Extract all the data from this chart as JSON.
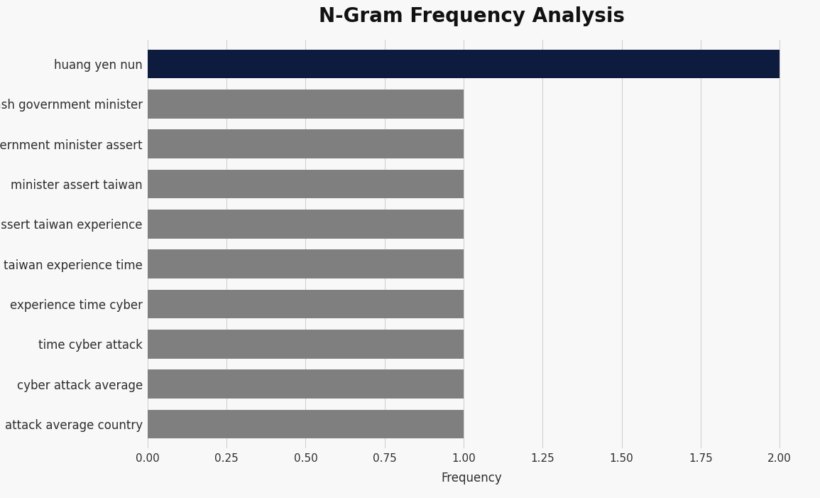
{
  "title": "N-Gram Frequency Analysis",
  "xlabel": "Frequency",
  "categories": [
    "attack average country",
    "cyber attack average",
    "time cyber attack",
    "experience time cyber",
    "taiwan experience time",
    "assert taiwan experience",
    "minister assert taiwan",
    "government minister assert",
    "hash government minister",
    "huang yen nun"
  ],
  "values": [
    1,
    1,
    1,
    1,
    1,
    1,
    1,
    1,
    1,
    2
  ],
  "bar_colors": [
    "#7f7f7f",
    "#7f7f7f",
    "#7f7f7f",
    "#7f7f7f",
    "#7f7f7f",
    "#7f7f7f",
    "#7f7f7f",
    "#7f7f7f",
    "#7f7f7f",
    "#0d1b3e"
  ],
  "xlim": [
    0,
    2.05
  ],
  "xticks": [
    0.0,
    0.25,
    0.5,
    0.75,
    1.0,
    1.25,
    1.5,
    1.75,
    2.0
  ],
  "background_color": "#f8f8f8",
  "title_fontsize": 20,
  "label_fontsize": 12,
  "tick_fontsize": 11,
  "bar_height": 0.72
}
